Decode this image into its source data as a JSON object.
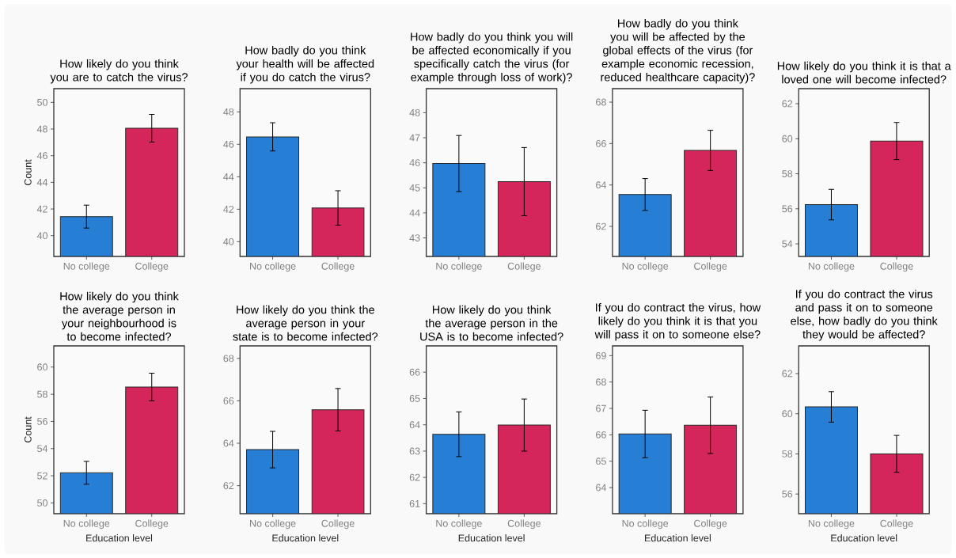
{
  "chart_data": [
    {
      "type": "bar",
      "title": "How likely do you think you are to catch the virus?",
      "ylabel": "Count",
      "categories": [
        "No college",
        "College"
      ],
      "values": [
        41.43,
        48.06
      ],
      "errors": [
        0.86,
        1.04
      ],
      "colors": [
        "#277fd5",
        "#d4265a"
      ],
      "ylim": [
        38.44,
        51.03
      ],
      "yticks": [
        40,
        42,
        44,
        46,
        48,
        50
      ]
    },
    {
      "type": "bar",
      "title": "How badly do you think your health will be affected if you do catch the virus?",
      "categories": [
        "No college",
        "College"
      ],
      "values": [
        46.46,
        42.08
      ],
      "errors": [
        0.87,
        1.06
      ],
      "colors": [
        "#277fd5",
        "#d4265a"
      ],
      "ylim": [
        39.09,
        49.43
      ],
      "yticks": [
        40,
        42,
        44,
        46,
        48
      ]
    },
    {
      "type": "bar",
      "title": "How badly do you think you will be affected economically if you specifically catch the virus (for example through loss of work)?",
      "categories": [
        "No college",
        "College"
      ],
      "values": [
        45.97,
        45.25
      ],
      "errors": [
        1.12,
        1.36
      ],
      "colors": [
        "#277fd5",
        "#d4265a"
      ],
      "ylim": [
        42.26,
        48.96
      ],
      "yticks": [
        43,
        44,
        45,
        46,
        47,
        48
      ]
    },
    {
      "type": "bar",
      "title": "How badly do you think you will be affected by the global effects of the virus (for example economic recession, reduced healthcare capacity)?",
      "categories": [
        "No college",
        "College"
      ],
      "values": [
        63.54,
        65.67
      ],
      "errors": [
        0.77,
        0.97
      ],
      "colors": [
        "#277fd5",
        "#d4265a"
      ],
      "ylim": [
        60.55,
        68.65
      ],
      "yticks": [
        62,
        64,
        66,
        68
      ]
    },
    {
      "type": "bar",
      "title": "How likely do you think it is that a loved one will become infected?",
      "categories": [
        "No college",
        "College"
      ],
      "values": [
        56.24,
        59.87
      ],
      "errors": [
        0.87,
        1.06
      ],
      "colors": [
        "#277fd5",
        "#d4265a"
      ],
      "ylim": [
        53.28,
        62.86
      ],
      "yticks": [
        54,
        56,
        58,
        60,
        62
      ]
    },
    {
      "type": "bar",
      "title": "How likely do you think the average person in your neighbourhood is to become infected?",
      "ylabel": "Count",
      "xlabel": "Education level",
      "categories": [
        "No college",
        "College"
      ],
      "values": [
        52.22,
        58.53
      ],
      "errors": [
        0.84,
        1.02
      ],
      "colors": [
        "#277fd5",
        "#d4265a"
      ],
      "ylim": [
        49.21,
        61.56
      ],
      "yticks": [
        50,
        52,
        54,
        56,
        58,
        60
      ]
    },
    {
      "type": "bar",
      "title": "How likely do you think the average person in your state is to become infected?",
      "xlabel": "Education level",
      "categories": [
        "No college",
        "College"
      ],
      "values": [
        63.7,
        65.58
      ],
      "errors": [
        0.86,
        1.0
      ],
      "colors": [
        "#277fd5",
        "#d4265a"
      ],
      "ylim": [
        60.68,
        68.59
      ],
      "yticks": [
        62,
        64,
        66,
        68
      ]
    },
    {
      "type": "bar",
      "title": "How likely do you think the average person in the USA is to become infected?",
      "xlabel": "Education level",
      "categories": [
        "No college",
        "College"
      ],
      "values": [
        63.64,
        63.99
      ],
      "errors": [
        0.85,
        0.99
      ],
      "colors": [
        "#277fd5",
        "#d4265a"
      ],
      "ylim": [
        60.62,
        67.0
      ],
      "yticks": [
        61,
        62,
        63,
        64,
        65,
        66
      ]
    },
    {
      "type": "bar",
      "title": "If you do contract the virus, how likely do you think it is that you will pass it on to someone else?",
      "xlabel": "Education level",
      "categories": [
        "No college",
        "College"
      ],
      "values": [
        66.03,
        66.36
      ],
      "errors": [
        0.9,
        1.07
      ],
      "colors": [
        "#277fd5",
        "#d4265a"
      ],
      "ylim": [
        63.01,
        69.37
      ],
      "yticks": [
        64,
        65,
        66,
        67,
        68,
        69
      ]
    },
    {
      "type": "bar",
      "title": "If you do contract the virus and pass it on to someone else, how badly do you think they would be affected?",
      "xlabel": "Education level",
      "categories": [
        "No college",
        "College"
      ],
      "values": [
        60.34,
        58.0
      ],
      "errors": [
        0.76,
        0.92
      ],
      "colors": [
        "#277fd5",
        "#d4265a"
      ],
      "ylim": [
        55.02,
        63.38
      ],
      "yticks": [
        56,
        58,
        60,
        62
      ]
    }
  ]
}
